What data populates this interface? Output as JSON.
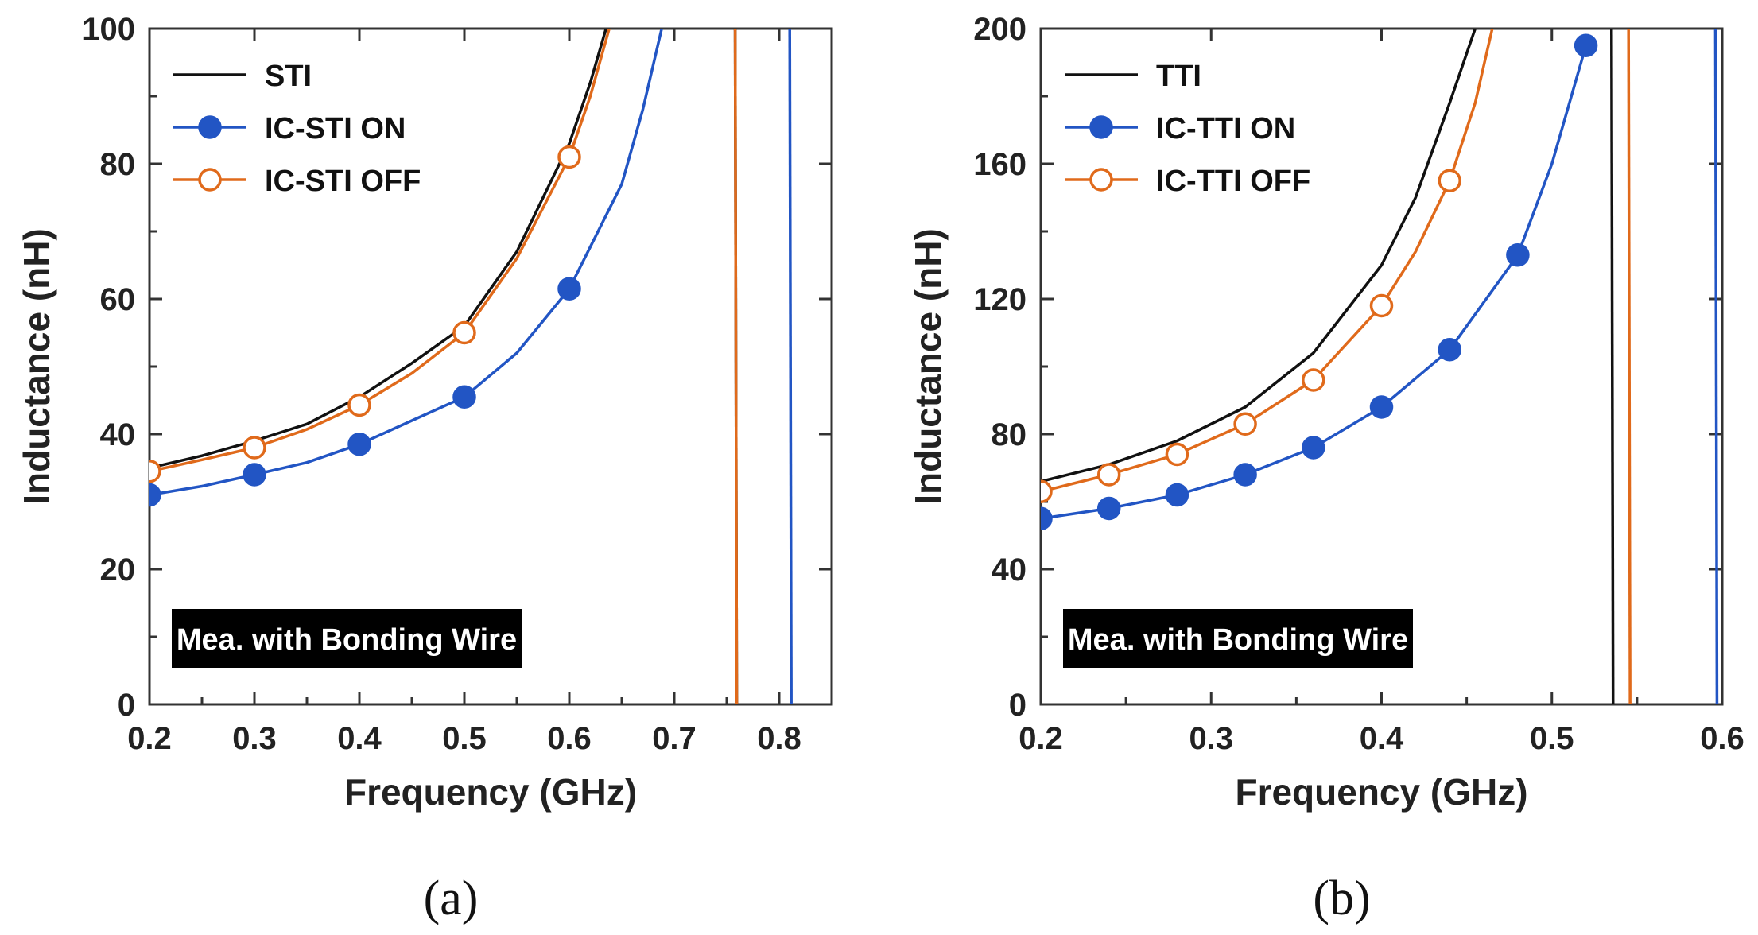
{
  "chart_data": [
    {
      "type": "line",
      "caption": "(a)",
      "xlabel": "Frequency (GHz)",
      "ylabel": "Inductance (nH)",
      "xlim": [
        0.2,
        0.85
      ],
      "ylim": [
        0,
        100
      ],
      "xticks": [
        "0.2",
        "0.3",
        "0.4",
        "0.5",
        "0.6",
        "0.7",
        "0.8"
      ],
      "yticks": [
        "0",
        "20",
        "40",
        "60",
        "80",
        "100"
      ],
      "annotation": "Mea. with Bonding Wire",
      "legend_position": "top-left",
      "series": [
        {
          "name": "STI",
          "color": "#111111",
          "marker": "none",
          "x": [
            0.2,
            0.25,
            0.3,
            0.35,
            0.4,
            0.45,
            0.5,
            0.55,
            0.6,
            0.62,
            0.635
          ],
          "y": [
            35,
            36.8,
            39,
            41.5,
            45.5,
            50.5,
            56,
            67,
            83,
            92,
            100
          ],
          "resonance_x": 0.758
        },
        {
          "name": "IC-STI ON",
          "color": "#2255c4",
          "marker": "filled-circle",
          "x": [
            0.2,
            0.25,
            0.3,
            0.35,
            0.4,
            0.45,
            0.5,
            0.55,
            0.6,
            0.65,
            0.67,
            0.688
          ],
          "y": [
            31,
            32.3,
            34,
            35.8,
            38.5,
            42,
            45.5,
            52,
            61.5,
            77,
            88,
            100
          ],
          "markers_x": [
            0.2,
            0.3,
            0.4,
            0.5,
            0.6
          ],
          "markers_y": [
            31,
            34,
            38.5,
            45.5,
            61.5
          ],
          "resonance_x": 0.81
        },
        {
          "name": "IC-STI OFF",
          "color": "#e06a1b",
          "marker": "open-circle",
          "x": [
            0.2,
            0.25,
            0.3,
            0.35,
            0.4,
            0.45,
            0.5,
            0.55,
            0.6,
            0.62,
            0.638
          ],
          "y": [
            34.5,
            36.2,
            38,
            40.7,
            44.3,
            49,
            55,
            66,
            81,
            90,
            100
          ],
          "markers_x": [
            0.2,
            0.3,
            0.4,
            0.5,
            0.6
          ],
          "markers_y": [
            34.5,
            38,
            44.3,
            55,
            81
          ],
          "resonance_x": 0.758
        }
      ]
    },
    {
      "type": "line",
      "caption": "(b)",
      "xlabel": "Frequency (GHz)",
      "ylabel": "Inductance (nH)",
      "xlim": [
        0.2,
        0.6
      ],
      "ylim": [
        0,
        200
      ],
      "xticks": [
        "0.2",
        "0.3",
        "0.4",
        "0.5",
        "0.6"
      ],
      "yticks": [
        "0",
        "40",
        "80",
        "120",
        "160",
        "200"
      ],
      "annotation": "Mea. with Bonding Wire",
      "legend_position": "top-left",
      "series": [
        {
          "name": "TTI",
          "color": "#111111",
          "marker": "none",
          "x": [
            0.2,
            0.24,
            0.28,
            0.32,
            0.36,
            0.4,
            0.42,
            0.44,
            0.455
          ],
          "y": [
            66,
            71,
            78,
            88,
            104,
            130,
            150,
            178,
            200
          ],
          "resonance_x": 0.535
        },
        {
          "name": "IC-TTI ON",
          "color": "#2255c4",
          "marker": "filled-circle",
          "x": [
            0.2,
            0.24,
            0.28,
            0.32,
            0.36,
            0.4,
            0.44,
            0.48,
            0.5,
            0.52
          ],
          "y": [
            55,
            58,
            62,
            68,
            76,
            88,
            105,
            133,
            160,
            195
          ],
          "markers_x": [
            0.2,
            0.24,
            0.28,
            0.32,
            0.36,
            0.4,
            0.44,
            0.48,
            0.52
          ],
          "markers_y": [
            55,
            58,
            62,
            68,
            76,
            88,
            105,
            133,
            195
          ],
          "resonance_x": 0.596
        },
        {
          "name": "IC-TTI OFF",
          "color": "#e06a1b",
          "marker": "open-circle",
          "x": [
            0.2,
            0.24,
            0.28,
            0.32,
            0.36,
            0.4,
            0.42,
            0.44,
            0.455,
            0.465
          ],
          "y": [
            63,
            68,
            74,
            83,
            96,
            118,
            134,
            155,
            178,
            200
          ],
          "markers_x": [
            0.2,
            0.24,
            0.28,
            0.32,
            0.36,
            0.4,
            0.44
          ],
          "markers_y": [
            63,
            68,
            74,
            83,
            96,
            118,
            155
          ],
          "resonance_x": 0.545
        }
      ]
    }
  ]
}
